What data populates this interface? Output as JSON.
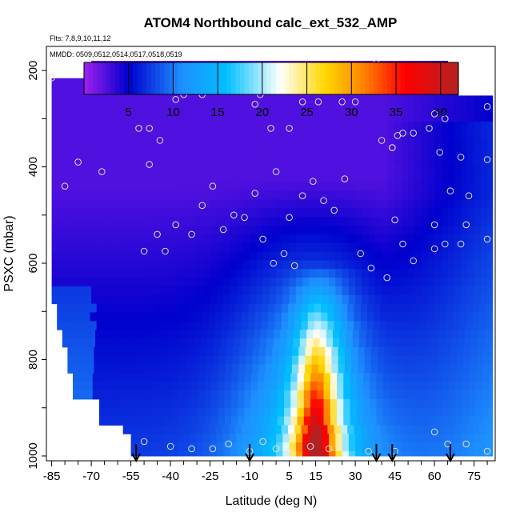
{
  "chart_data": {
    "type": "heatmap",
    "title": "ATOM4 Northbound calc_ext_532_AMP",
    "subtitle": "Flts: 7,8,9,10,11,12",
    "panel_note": "MMDD: 0509,0512,0514,0517,0518,0519",
    "xlabel": "Latitude (deg N)",
    "ylabel": "PSXC (mbar)",
    "x_ticks": [
      "-85",
      "-70",
      "-55",
      "-40",
      "-25",
      "-10",
      "5",
      "15",
      "30",
      "45",
      "60",
      "75"
    ],
    "y_ticks": [
      "200",
      "400",
      "600",
      "800",
      "1000"
    ],
    "xlim": [
      -87,
      83
    ],
    "ylim": [
      1010,
      150
    ],
    "y_reversed": true,
    "colorbar": {
      "range": [
        0,
        42
      ],
      "ticks": [
        "5",
        "10",
        "15",
        "20",
        "25",
        "30",
        "35",
        "40"
      ],
      "colors": [
        "#a020f0",
        "#0000cd",
        "#1e90ff",
        "#00bfff",
        "#ffffff",
        "#ffd700",
        "#ff8c00",
        "#ff0000",
        "#b22222"
      ]
    },
    "field": {
      "description": "Gridded extinction (Mm^-1): low (purple) aloft and at high latitudes, maximum (yellow/orange ~25-30) near 12-18 N below 700 mbar.",
      "lat_extent": [
        -85,
        82
      ],
      "p_extent": [
        180,
        1000
      ]
    },
    "sample_points": [
      [
        -85,
        215
      ],
      [
        -72,
        210
      ],
      [
        -68,
        190
      ],
      [
        -65,
        190
      ],
      [
        -60,
        190
      ],
      [
        -55,
        215
      ],
      [
        -80,
        440
      ],
      [
        -75,
        390
      ],
      [
        -66,
        410
      ],
      [
        -48,
        395
      ],
      [
        -52,
        320
      ],
      [
        -48,
        320
      ],
      [
        -44,
        345
      ],
      [
        -38,
        260
      ],
      [
        -35,
        250
      ],
      [
        -28,
        250
      ],
      [
        -20,
        235
      ],
      [
        -12,
        215
      ],
      [
        -8,
        270
      ],
      [
        -6,
        250
      ],
      [
        -2,
        320
      ],
      [
        5,
        320
      ],
      [
        10,
        265
      ],
      [
        16,
        265
      ],
      [
        25,
        265
      ],
      [
        30,
        265
      ],
      [
        38,
        185
      ],
      [
        40,
        345
      ],
      [
        44,
        360
      ],
      [
        -50,
        575
      ],
      [
        -45,
        540
      ],
      [
        -42,
        575
      ],
      [
        -38,
        520
      ],
      [
        -32,
        540
      ],
      [
        -28,
        480
      ],
      [
        -24,
        440
      ],
      [
        -20,
        530
      ],
      [
        -16,
        500
      ],
      [
        -12,
        505
      ],
      [
        -8,
        455
      ],
      [
        -5,
        550
      ],
      [
        0,
        410
      ],
      [
        5,
        505
      ],
      [
        10,
        460
      ],
      [
        14,
        430
      ],
      [
        18,
        470
      ],
      [
        22,
        490
      ],
      [
        26,
        425
      ],
      [
        32,
        580
      ],
      [
        36,
        610
      ],
      [
        42,
        630
      ],
      [
        45,
        510
      ],
      [
        48,
        560
      ],
      [
        52,
        595
      ],
      [
        -1,
        600
      ],
      [
        3,
        580
      ],
      [
        7,
        605
      ],
      [
        60,
        210
      ],
      [
        62,
        225
      ],
      [
        64,
        210
      ],
      [
        60,
        290
      ],
      [
        64,
        300
      ],
      [
        58,
        320
      ],
      [
        52,
        330
      ],
      [
        48,
        330
      ],
      [
        46,
        335
      ],
      [
        44,
        360
      ],
      [
        62,
        370
      ],
      [
        70,
        380
      ],
      [
        73,
        460
      ],
      [
        72,
        520
      ],
      [
        70,
        560
      ],
      [
        64,
        560
      ],
      [
        60,
        520
      ],
      [
        60,
        570
      ],
      [
        66,
        450
      ],
      [
        80,
        275
      ],
      [
        80,
        385
      ],
      [
        80,
        550
      ],
      [
        -50,
        970
      ],
      [
        -40,
        980
      ],
      [
        -32,
        985
      ],
      [
        -24,
        985
      ],
      [
        -18,
        975
      ],
      [
        -10,
        990
      ],
      [
        -5,
        970
      ],
      [
        0,
        985
      ],
      [
        5,
        990
      ],
      [
        13,
        980
      ],
      [
        20,
        985
      ],
      [
        35,
        990
      ],
      [
        45,
        990
      ],
      [
        60,
        950
      ],
      [
        65,
        975
      ],
      [
        72,
        975
      ],
      [
        80,
        990
      ]
    ],
    "flight_arrows": [
      -53,
      -10,
      38,
      44,
      66
    ]
  }
}
